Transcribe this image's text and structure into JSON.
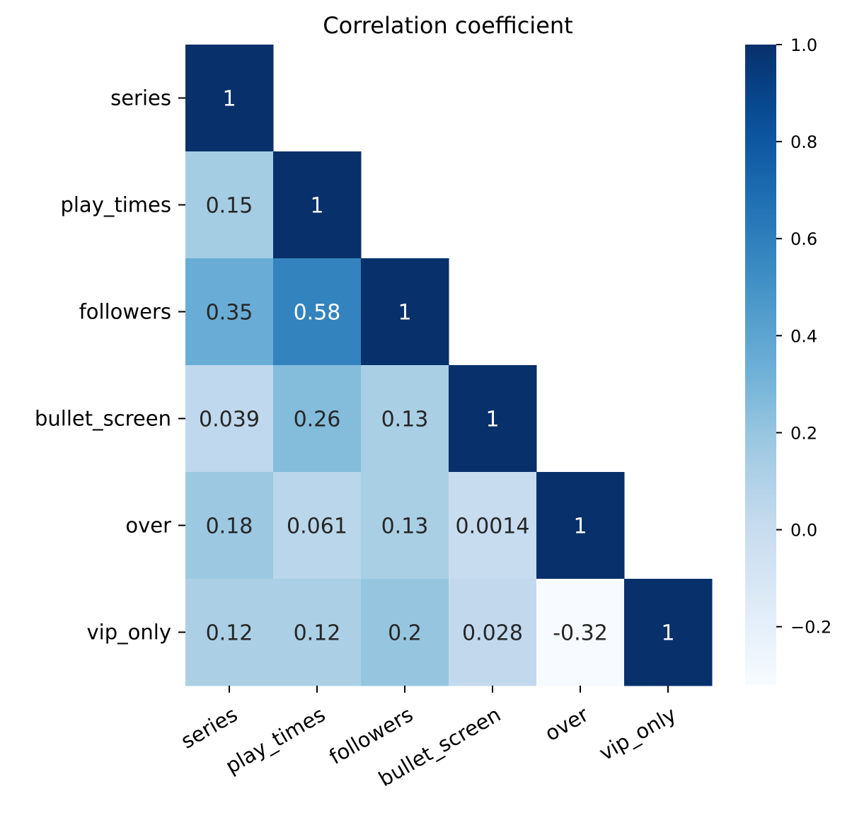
{
  "chart_data": {
    "type": "heatmap",
    "title": "Correlation coefficient",
    "variables": [
      "series",
      "play_times",
      "followers",
      "bullet_screen",
      "over",
      "vip_only"
    ],
    "mask": "upper-triangle",
    "matrix": [
      [
        1,
        null,
        null,
        null,
        null,
        null
      ],
      [
        0.15,
        1,
        null,
        null,
        null,
        null
      ],
      [
        0.35,
        0.58,
        1,
        null,
        null,
        null
      ],
      [
        0.039,
        0.26,
        0.13,
        1,
        null,
        null
      ],
      [
        0.18,
        0.061,
        0.13,
        0.0014,
        1,
        null
      ],
      [
        0.12,
        0.12,
        0.2,
        0.028,
        -0.32,
        1
      ]
    ],
    "cell_labels": [
      [
        "1",
        "",
        "",
        "",
        "",
        ""
      ],
      [
        "0.15",
        "1",
        "",
        "",
        "",
        ""
      ],
      [
        "0.35",
        "0.58",
        "1",
        "",
        "",
        ""
      ],
      [
        "0.039",
        "0.26",
        "0.13",
        "1",
        "",
        ""
      ],
      [
        "0.18",
        "0.061",
        "0.13",
        "0.0014",
        "1",
        ""
      ],
      [
        "0.12",
        "0.12",
        "0.2",
        "0.028",
        "-0.32",
        "1"
      ]
    ],
    "colormap": "Blues",
    "vmin": -0.32,
    "vmax": 1.0,
    "colorbar_ticks": [
      1.0,
      0.8,
      0.6,
      0.4,
      0.2,
      0.0,
      -0.2
    ],
    "colorbar_tick_labels": [
      "1.0",
      "0.8",
      "0.6",
      "0.4",
      "0.2",
      "0.0",
      "−0.2"
    ],
    "x_tick_rotation_deg": -30
  }
}
